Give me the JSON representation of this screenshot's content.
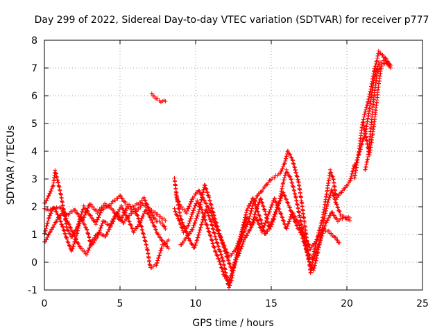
{
  "chart_data": {
    "type": "scatter",
    "title": "Day 299 of 2022, Sidereal Day-to-day VTEC variation (SDTVAR) for receiver p777",
    "xlabel": "GPS time / hours",
    "ylabel": "SDTVAR / TECUs",
    "xlim": [
      0,
      25
    ],
    "ylim": [
      -1,
      8
    ],
    "xticks": [
      "0",
      "5",
      "10",
      "15",
      "20",
      "25"
    ],
    "yticks": [
      "-1",
      "0",
      "1",
      "2",
      "3",
      "4",
      "5",
      "6",
      "7",
      "8"
    ],
    "grid": true,
    "marker": "+",
    "series": [
      {
        "name": "sdtvar",
        "color": "#ff0000",
        "tracks": [
          [
            [
              0,
              2.1
            ],
            [
              0.3,
              2.4
            ],
            [
              0.6,
              2.8
            ],
            [
              0.7,
              3.3
            ],
            [
              0.9,
              2.9
            ],
            [
              1.1,
              2.4
            ],
            [
              1.3,
              1.8
            ],
            [
              1.5,
              1.2
            ],
            [
              1.8,
              0.9
            ],
            [
              2.2,
              1.3
            ],
            [
              2.6,
              2.0
            ],
            [
              3.0,
              1.7
            ],
            [
              3.4,
              1.4
            ],
            [
              3.8,
              1.9
            ],
            [
              4.2,
              2.0
            ],
            [
              4.6,
              2.2
            ],
            [
              5.0,
              2.4
            ],
            [
              5.4,
              2.1
            ],
            [
              5.8,
              2.0
            ],
            [
              6.2,
              2.1
            ],
            [
              6.6,
              2.3
            ],
            [
              7.0,
              1.8
            ],
            [
              7.4,
              1.5
            ],
            [
              7.8,
              1.4
            ],
            [
              8.0,
              1.2
            ]
          ],
          [
            [
              0,
              1.0
            ],
            [
              0.3,
              1.6
            ],
            [
              0.6,
              2.0
            ],
            [
              0.9,
              1.7
            ],
            [
              1.2,
              1.3
            ],
            [
              1.5,
              0.8
            ],
            [
              1.8,
              0.4
            ],
            [
              2.1,
              0.9
            ],
            [
              2.4,
              1.6
            ],
            [
              2.8,
              1.2
            ],
            [
              3.1,
              0.6
            ],
            [
              3.5,
              0.9
            ],
            [
              3.9,
              1.5
            ],
            [
              4.3,
              1.3
            ],
            [
              4.7,
              1.7
            ],
            [
              5.1,
              2.0
            ],
            [
              5.5,
              1.6
            ],
            [
              5.9,
              1.1
            ],
            [
              6.3,
              1.4
            ],
            [
              6.7,
              1.9
            ],
            [
              7.1,
              1.5
            ],
            [
              7.5,
              1.0
            ],
            [
              7.9,
              0.7
            ],
            [
              8.2,
              0.5
            ]
          ],
          [
            [
              0,
              0.7
            ],
            [
              0.4,
              1.1
            ],
            [
              0.8,
              1.5
            ],
            [
              1.2,
              1.8
            ],
            [
              1.6,
              1.4
            ],
            [
              2.0,
              0.9
            ],
            [
              2.4,
              0.5
            ],
            [
              2.8,
              0.3
            ],
            [
              3.2,
              0.8
            ],
            [
              3.6,
              1.1
            ],
            [
              4.0,
              0.9
            ],
            [
              4.4,
              1.3
            ],
            [
              4.8,
              1.8
            ],
            [
              5.2,
              1.4
            ],
            [
              5.6,
              1.7
            ],
            [
              6.0,
              1.9
            ],
            [
              6.4,
              1.3
            ],
            [
              6.8,
              0.5
            ],
            [
              7.0,
              -0.2
            ],
            [
              7.4,
              -0.1
            ],
            [
              7.8,
              0.6
            ],
            [
              8.2,
              0.8
            ]
          ],
          [
            [
              0,
              1.9
            ],
            [
              0.5,
              1.9
            ],
            [
              1.0,
              2.0
            ],
            [
              1.5,
              1.7
            ],
            [
              2.0,
              1.9
            ],
            [
              2.5,
              1.5
            ],
            [
              3.0,
              2.1
            ],
            [
              3.5,
              1.8
            ],
            [
              4.0,
              2.1
            ],
            [
              4.5,
              1.9
            ],
            [
              5.0,
              1.5
            ],
            [
              5.5,
              2.0
            ],
            [
              6.0,
              1.8
            ],
            [
              6.5,
              2.1
            ],
            [
              7.0,
              1.9
            ],
            [
              7.5,
              1.7
            ],
            [
              8.0,
              1.5
            ]
          ],
          [
            [
              7.1,
              6.05
            ],
            [
              7.4,
              5.9
            ],
            [
              7.7,
              5.8
            ],
            [
              8.0,
              5.8
            ]
          ],
          [
            [
              8.6,
              3.0
            ],
            [
              8.8,
              2.2
            ],
            [
              9.0,
              1.6
            ],
            [
              9.3,
              1.2
            ],
            [
              9.6,
              0.8
            ],
            [
              9.9,
              0.5
            ],
            [
              10.1,
              0.8
            ],
            [
              10.4,
              1.4
            ],
            [
              10.7,
              1.9
            ],
            [
              11.0,
              1.5
            ],
            [
              11.3,
              0.9
            ],
            [
              11.6,
              0.4
            ],
            [
              11.8,
              0.1
            ],
            [
              12.0,
              -0.4
            ],
            [
              12.2,
              -0.9
            ],
            [
              12.4,
              -0.6
            ],
            [
              12.6,
              0.0
            ],
            [
              12.9,
              0.6
            ],
            [
              13.2,
              1.1
            ],
            [
              13.5,
              1.5
            ],
            [
              13.8,
              2.1
            ],
            [
              14.1,
              2.4
            ],
            [
              14.4,
              2.6
            ],
            [
              14.7,
              2.8
            ],
            [
              15.0,
              3.0
            ],
            [
              15.3,
              3.1
            ],
            [
              15.6,
              3.2
            ],
            [
              15.9,
              3.6
            ],
            [
              16.1,
              4.0
            ],
            [
              16.4,
              3.7
            ],
            [
              16.6,
              3.3
            ],
            [
              16.8,
              2.9
            ],
            [
              17.0,
              2.2
            ],
            [
              17.2,
              1.4
            ],
            [
              17.4,
              0.6
            ],
            [
              17.6,
              -0.4
            ],
            [
              17.8,
              0.3
            ],
            [
              18.1,
              1.0
            ],
            [
              18.4,
              1.6
            ],
            [
              18.7,
              2.6
            ],
            [
              18.9,
              3.3
            ],
            [
              19.1,
              3.0
            ],
            [
              19.3,
              2.3
            ],
            [
              19.6,
              2.5
            ],
            [
              19.9,
              2.7
            ],
            [
              20.2,
              2.9
            ],
            [
              20.4,
              3.3
            ],
            [
              20.5,
              3.5
            ]
          ],
          [
            [
              8.6,
              1.9
            ],
            [
              8.9,
              1.5
            ],
            [
              9.2,
              1.1
            ],
            [
              9.5,
              1.3
            ],
            [
              9.8,
              1.8
            ],
            [
              10.1,
              2.2
            ],
            [
              10.4,
              1.9
            ],
            [
              10.7,
              1.4
            ],
            [
              11.0,
              0.9
            ],
            [
              11.3,
              0.4
            ],
            [
              11.6,
              0.0
            ],
            [
              11.9,
              -0.5
            ],
            [
              12.2,
              -0.7
            ],
            [
              12.5,
              -0.2
            ],
            [
              12.8,
              0.5
            ],
            [
              13.1,
              1.2
            ],
            [
              13.4,
              1.6
            ],
            [
              13.7,
              1.3
            ],
            [
              14.0,
              1.9
            ],
            [
              14.3,
              2.3
            ],
            [
              14.6,
              1.8
            ],
            [
              14.9,
              1.2
            ],
            [
              15.2,
              1.6
            ],
            [
              15.5,
              2.1
            ],
            [
              15.8,
              2.9
            ],
            [
              16.0,
              3.3
            ],
            [
              16.3,
              3.0
            ],
            [
              16.6,
              2.4
            ],
            [
              16.9,
              1.6
            ],
            [
              17.2,
              0.8
            ],
            [
              17.5,
              0.0
            ],
            [
              17.8,
              -0.3
            ],
            [
              18.1,
              0.4
            ],
            [
              18.4,
              1.3
            ],
            [
              18.7,
              2.1
            ],
            [
              19.0,
              2.6
            ],
            [
              19.3,
              2.1
            ],
            [
              19.6,
              1.7
            ],
            [
              19.9,
              1.6
            ],
            [
              20.2,
              1.5
            ]
          ],
          [
            [
              8.7,
              2.4
            ],
            [
              9.0,
              2.0
            ],
            [
              9.4,
              1.8
            ],
            [
              9.8,
              2.3
            ],
            [
              10.2,
              2.6
            ],
            [
              10.6,
              2.2
            ],
            [
              11.0,
              1.8
            ],
            [
              11.4,
              1.2
            ],
            [
              11.8,
              0.7
            ],
            [
              12.2,
              0.2
            ],
            [
              12.6,
              0.4
            ],
            [
              13.0,
              1.0
            ],
            [
              13.4,
              1.9
            ],
            [
              13.8,
              2.3
            ],
            [
              14.2,
              1.7
            ],
            [
              14.6,
              1.0
            ],
            [
              15.0,
              1.4
            ],
            [
              15.4,
              2.0
            ],
            [
              15.8,
              2.5
            ],
            [
              16.2,
              2.0
            ],
            [
              16.6,
              1.4
            ],
            [
              17.0,
              1.0
            ],
            [
              17.4,
              0.3
            ],
            [
              17.8,
              0.1
            ],
            [
              18.2,
              0.7
            ],
            [
              18.6,
              1.4
            ],
            [
              19.0,
              1.8
            ],
            [
              19.4,
              1.5
            ],
            [
              19.8,
              1.6
            ],
            [
              20.2,
              1.6
            ]
          ],
          [
            [
              9.0,
              0.6
            ],
            [
              9.4,
              0.9
            ],
            [
              9.8,
              1.2
            ],
            [
              10.2,
              1.8
            ],
            [
              10.6,
              2.8
            ],
            [
              10.9,
              2.3
            ],
            [
              11.2,
              1.7
            ],
            [
              11.6,
              1.0
            ],
            [
              12.0,
              0.3
            ],
            [
              12.4,
              -0.3
            ],
            [
              12.8,
              0.2
            ],
            [
              13.2,
              0.8
            ],
            [
              13.6,
              1.2
            ],
            [
              14.0,
              1.6
            ],
            [
              14.4,
              1.1
            ],
            [
              14.8,
              1.7
            ],
            [
              15.2,
              2.3
            ],
            [
              15.6,
              1.8
            ],
            [
              16.0,
              1.2
            ],
            [
              16.4,
              1.8
            ],
            [
              16.8,
              1.4
            ],
            [
              17.2,
              0.9
            ],
            [
              17.6,
              0.5
            ],
            [
              18.0,
              0.8
            ],
            [
              18.4,
              1.2
            ],
            [
              18.8,
              1.1
            ],
            [
              19.2,
              0.9
            ],
            [
              19.5,
              0.7
            ]
          ],
          [
            [
              20.5,
              3.0
            ],
            [
              20.8,
              4.0
            ],
            [
              21.0,
              4.9
            ],
            [
              21.2,
              5.4
            ],
            [
              21.4,
              5.8
            ],
            [
              21.6,
              6.3
            ],
            [
              21.8,
              6.9
            ],
            [
              22.0,
              7.3
            ],
            [
              22.1,
              7.6
            ],
            [
              22.3,
              7.5
            ],
            [
              22.6,
              7.3
            ],
            [
              22.9,
              7.1
            ]
          ],
          [
            [
              20.5,
              3.4
            ],
            [
              20.8,
              3.9
            ],
            [
              21.0,
              4.3
            ],
            [
              21.2,
              4.6
            ],
            [
              21.4,
              5.2
            ],
            [
              21.6,
              5.9
            ],
            [
              21.8,
              6.6
            ],
            [
              22.0,
              7.0
            ],
            [
              22.2,
              7.2
            ],
            [
              22.5,
              7.3
            ],
            [
              22.8,
              7.1
            ]
          ],
          [
            [
              21.1,
              5.0
            ],
            [
              21.3,
              4.4
            ],
            [
              21.5,
              3.9
            ],
            [
              21.7,
              4.6
            ],
            [
              21.9,
              5.4
            ],
            [
              22.1,
              6.4
            ],
            [
              22.3,
              7.1
            ],
            [
              22.6,
              7.2
            ],
            [
              22.9,
              7.0
            ]
          ],
          [
            [
              21.2,
              3.3
            ],
            [
              21.4,
              3.8
            ],
            [
              21.6,
              4.9
            ],
            [
              21.8,
              6.0
            ],
            [
              22.0,
              6.8
            ],
            [
              22.2,
              7.0
            ]
          ]
        ]
      }
    ]
  }
}
